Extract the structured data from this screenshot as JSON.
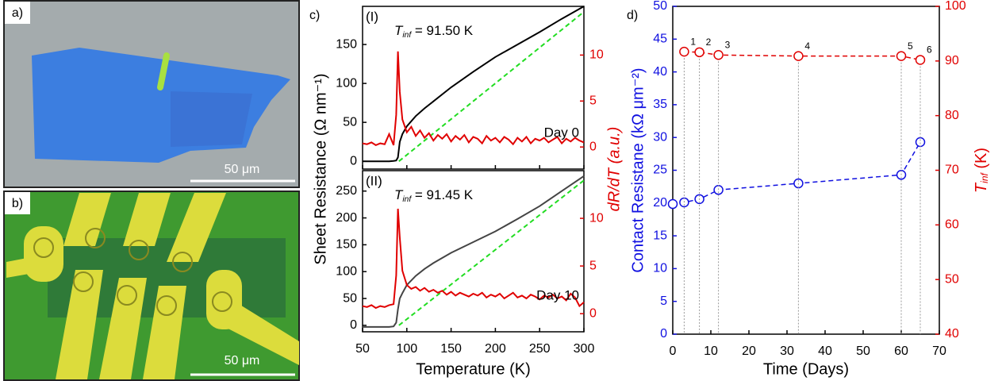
{
  "panels": {
    "a": {
      "label": "a)",
      "scale_bar": "50 μm"
    },
    "b": {
      "label": "b)",
      "scale_bar": "50 μm"
    }
  },
  "chart_data": [
    {
      "type": "line",
      "label": "c)",
      "panel_label": "(I)",
      "tinf": {
        "symbol": "T",
        "sub": "inf",
        "rest": " = 91.50 K"
      },
      "day_label": "Day 0",
      "ylabel": "Sheet Resistance (Ω nm⁻¹)",
      "y2label": "dR/dT (a.u.)",
      "xlim": [
        50,
        300
      ],
      "xticks": [
        50,
        100,
        150,
        200,
        250,
        300
      ],
      "ylim": [
        -10,
        199
      ],
      "yticks": [
        0,
        50,
        100,
        150
      ],
      "ycolor": "#000000",
      "y2lim": [
        -2.4,
        15.3
      ],
      "y2ticks": [
        0,
        5,
        10
      ],
      "y2color": "#e00000",
      "series": [
        {
          "color": "#000000",
          "style": "solid",
          "x": [
            50,
            80,
            85,
            88,
            90,
            92,
            95,
            100,
            110,
            120,
            130,
            150,
            175,
            200,
            225,
            250,
            275,
            300
          ],
          "values": [
            0,
            0,
            0.5,
            1,
            5,
            25,
            35,
            45,
            58,
            68,
            77,
            95,
            115,
            134,
            150,
            166,
            183,
            199
          ]
        },
        {
          "color": "#22dd22",
          "style": "dashed",
          "x": [
            91,
            300
          ],
          "values": [
            0,
            192
          ]
        },
        {
          "color": "#e00000",
          "style": "solid",
          "axis": "y2",
          "x": [
            50,
            55,
            60,
            65,
            70,
            75,
            80,
            85,
            88,
            90,
            92,
            95,
            100,
            105,
            110,
            115,
            120,
            125,
            130,
            135,
            140,
            145,
            150,
            155,
            160,
            165,
            170,
            175,
            180,
            185,
            190,
            195,
            200,
            205,
            210,
            215,
            220,
            225,
            230,
            235,
            240,
            245,
            250,
            255,
            260,
            265,
            270,
            275,
            280,
            285,
            290,
            295,
            300
          ],
          "values": [
            0.4,
            0.3,
            0.5,
            0.2,
            0.4,
            0.3,
            1.4,
            0.2,
            3.5,
            10.4,
            6,
            3,
            1.6,
            2.2,
            1.2,
            1.8,
            1.0,
            1.5,
            0.7,
            1.3,
            0.9,
            1.4,
            0.6,
            1.2,
            0.8,
            1.3,
            0.5,
            1.1,
            0.9,
            0.4,
            1.2,
            0.7,
            1.0,
            0.5,
            1.1,
            0.8,
            0.3,
            1.0,
            0.6,
            1.1,
            0.4,
            0.9,
            0.7,
            1.0,
            0.5,
            0.8,
            1.1,
            0.4,
            0.9,
            0.6,
            1.0,
            0.7,
            0.5
          ]
        }
      ]
    },
    {
      "type": "line",
      "panel_label": "(II)",
      "tinf": {
        "symbol": "T",
        "sub": "inf",
        "rest": " = 91.45 K"
      },
      "day_label": "Day 10",
      "xlabel": "Temperature (K)",
      "xlim": [
        50,
        300
      ],
      "xticks": [
        50,
        100,
        150,
        200,
        250,
        300
      ],
      "ylim": [
        -12,
        288
      ],
      "yticks": [
        0,
        50,
        100,
        150,
        200,
        250
      ],
      "ycolor": "#000000",
      "y2lim": [
        -1.9,
        15
      ],
      "y2ticks": [
        0,
        5,
        10
      ],
      "y2color": "#e00000",
      "series": [
        {
          "color": "#444444",
          "style": "solid",
          "x": [
            50,
            80,
            85,
            88,
            90,
            92,
            95,
            100,
            110,
            120,
            130,
            150,
            175,
            200,
            225,
            250,
            275,
            300
          ],
          "values": [
            -3,
            -3,
            -2,
            5,
            30,
            50,
            60,
            75,
            92,
            105,
            116,
            135,
            155,
            175,
            198,
            222,
            250,
            278
          ]
        },
        {
          "color": "#22dd22",
          "style": "dashed",
          "x": [
            91,
            300
          ],
          "values": [
            0,
            270
          ]
        },
        {
          "color": "#e00000",
          "style": "solid",
          "axis": "y2",
          "x": [
            50,
            55,
            60,
            65,
            70,
            75,
            80,
            85,
            88,
            90,
            92,
            95,
            100,
            105,
            110,
            115,
            120,
            125,
            130,
            135,
            140,
            145,
            150,
            155,
            160,
            165,
            170,
            175,
            180,
            185,
            190,
            195,
            200,
            205,
            210,
            215,
            220,
            225,
            230,
            235,
            240,
            245,
            250,
            255,
            260,
            265,
            270,
            275,
            280,
            285,
            290,
            295,
            300
          ],
          "values": [
            0.8,
            0.7,
            0.9,
            0.6,
            0.8,
            0.7,
            0.9,
            1.0,
            4,
            11,
            8,
            4.5,
            3.0,
            2.6,
            2.8,
            2.4,
            2.7,
            2.3,
            2.5,
            2.2,
            2.4,
            2.0,
            2.3,
            1.9,
            2.2,
            2.0,
            1.8,
            2.1,
            1.9,
            2.2,
            1.7,
            2.0,
            1.8,
            2.1,
            1.6,
            1.9,
            2.2,
            1.7,
            1.9,
            1.6,
            2.0,
            1.8,
            1.5,
            1.9,
            1.7,
            2.0,
            1.6,
            1.8,
            1.4,
            2.1,
            1.7,
            0.8,
            1.2
          ]
        }
      ]
    },
    {
      "type": "line",
      "label": "d)",
      "xlabel": "Time (Days)",
      "ylabel": "Contact Resistane (kΩ μm⁻²)",
      "y2label": {
        "symbol": "T",
        "sub": "inf",
        "rest": " (K)"
      },
      "xlim": [
        0,
        70
      ],
      "xticks": [
        0,
        10,
        20,
        30,
        40,
        50,
        60,
        70
      ],
      "ylim": [
        0,
        50
      ],
      "yticks": [
        0,
        5,
        10,
        15,
        20,
        25,
        30,
        35,
        40,
        45,
        50
      ],
      "ycolor": "#1010e0",
      "y2lim": [
        40,
        100
      ],
      "y2ticks": [
        40,
        50,
        60,
        70,
        80,
        90,
        100
      ],
      "y2color": "#e00000",
      "series": [
        {
          "color": "#1010e0",
          "style": "dashed",
          "marker": "circle",
          "x": [
            0,
            3,
            7,
            12,
            33,
            60,
            65
          ],
          "values": [
            19.85,
            20.1,
            20.6,
            22.0,
            23.0,
            24.3,
            29.3
          ]
        },
        {
          "color": "#e00000",
          "style": "dashed",
          "marker": "circle",
          "axis": "y2",
          "drop_lines": true,
          "x": [
            3,
            7,
            12,
            33,
            60,
            65
          ],
          "values": [
            91.7,
            91.6,
            91.1,
            90.9,
            90.9,
            90.2
          ],
          "point_labels": [
            "1",
            "2",
            "3",
            "4",
            "5",
            "6"
          ]
        }
      ]
    }
  ]
}
